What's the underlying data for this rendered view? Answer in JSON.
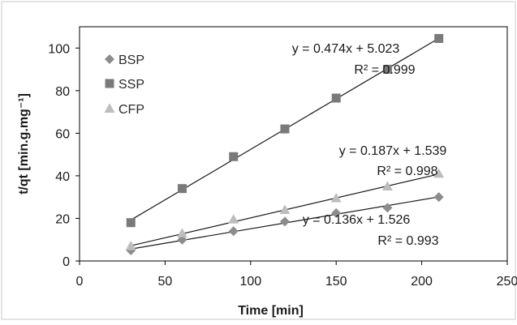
{
  "chart_data": {
    "type": "scatter",
    "xlabel": "Time [min]",
    "ylabel": "t/qt [min.g.mg⁻¹]",
    "xlim": [
      0,
      250
    ],
    "ylim": [
      0,
      110
    ],
    "x_ticks": [
      0,
      50,
      100,
      150,
      200,
      250
    ],
    "y_ticks": [
      0,
      20,
      40,
      60,
      80,
      100
    ],
    "x_tick_labels": [
      "0",
      "50",
      "100",
      "150",
      "200",
      "250"
    ],
    "y_tick_labels": [
      "0",
      "20",
      "40",
      "60",
      "80",
      "100"
    ],
    "grid": false,
    "legend_position": "top-left",
    "series": [
      {
        "name": "BSP",
        "marker": "diamond",
        "color": "#8c8c8c",
        "x": [
          30,
          60,
          90,
          120,
          150,
          180,
          210
        ],
        "y": [
          5,
          10,
          14,
          18.5,
          22.5,
          25,
          30
        ],
        "trendline": {
          "slope": 0.136,
          "intercept": 1.526,
          "equation": "y = 0.136x + 1.526",
          "r2": "R² = 0.993"
        }
      },
      {
        "name": "SSP",
        "marker": "square",
        "color": "#7a7a7a",
        "x": [
          30,
          60,
          90,
          120,
          150,
          180,
          210
        ],
        "y": [
          18,
          34,
          49,
          62,
          76.5,
          90,
          104.5
        ],
        "trendline": {
          "slope": 0.474,
          "intercept": 5.023,
          "equation": "y = 0.474x + 5.023",
          "r2": "R² = 0.999"
        }
      },
      {
        "name": "CFP",
        "marker": "triangle",
        "color": "#bdbdbd",
        "x": [
          30,
          60,
          90,
          120,
          150,
          180,
          210
        ],
        "y": [
          7,
          13,
          19.5,
          24,
          29.5,
          35,
          41
        ],
        "trendline": {
          "slope": 0.187,
          "intercept": 1.539,
          "equation": "y = 0.187x + 1.539",
          "r2": "R² = 0.998"
        }
      }
    ]
  }
}
